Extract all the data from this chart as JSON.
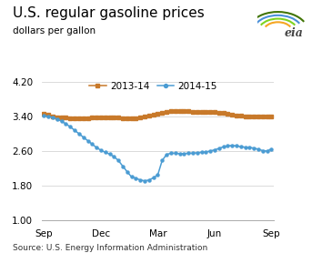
{
  "title": "U.S. regular gasoline prices",
  "ylabel": "dollars per gallon",
  "source": "Source: U.S. Energy Information Administration",
  "ylim": [
    1.0,
    4.4
  ],
  "yticks": [
    1.0,
    1.8,
    2.6,
    3.4,
    4.2
  ],
  "xtick_labels": [
    "Sep",
    "Dec",
    "Mar",
    "Jun",
    "Sep"
  ],
  "xtick_positions": [
    0,
    13,
    26,
    39,
    52
  ],
  "series_2013": [
    3.47,
    3.44,
    3.41,
    3.39,
    3.38,
    3.37,
    3.36,
    3.35,
    3.35,
    3.36,
    3.36,
    3.37,
    3.37,
    3.38,
    3.38,
    3.38,
    3.38,
    3.37,
    3.36,
    3.35,
    3.35,
    3.36,
    3.38,
    3.4,
    3.42,
    3.44,
    3.46,
    3.49,
    3.51,
    3.52,
    3.52,
    3.52,
    3.52,
    3.52,
    3.51,
    3.51,
    3.5,
    3.5,
    3.5,
    3.5,
    3.49,
    3.48,
    3.47,
    3.45,
    3.43,
    3.42,
    3.41,
    3.41,
    3.41,
    3.41,
    3.41,
    3.4,
    3.4
  ],
  "series_2014": [
    3.42,
    3.4,
    3.38,
    3.34,
    3.29,
    3.23,
    3.16,
    3.08,
    3.0,
    2.92,
    2.84,
    2.76,
    2.68,
    2.62,
    2.57,
    2.53,
    2.47,
    2.38,
    2.25,
    2.12,
    2.0,
    1.97,
    1.93,
    1.91,
    1.93,
    1.98,
    2.05,
    2.38,
    2.52,
    2.55,
    2.55,
    2.54,
    2.54,
    2.55,
    2.55,
    2.56,
    2.57,
    2.58,
    2.6,
    2.63,
    2.66,
    2.7,
    2.72,
    2.73,
    2.72,
    2.7,
    2.69,
    2.68,
    2.67,
    2.64,
    2.61,
    2.6,
    2.65
  ],
  "color_2013": "#c8792a",
  "color_2014": "#4b9cd3",
  "marker_2013": "s",
  "marker_2014": "o",
  "legend_label_2013": "2013-14",
  "legend_label_2014": "2014-15",
  "grid_color": "#cccccc",
  "title_fontsize": 11,
  "label_fontsize": 7.5,
  "tick_fontsize": 7.5,
  "source_fontsize": 6.5,
  "marker_size": 2.2,
  "line_width": 1.1,
  "legend_fontsize": 7.5
}
